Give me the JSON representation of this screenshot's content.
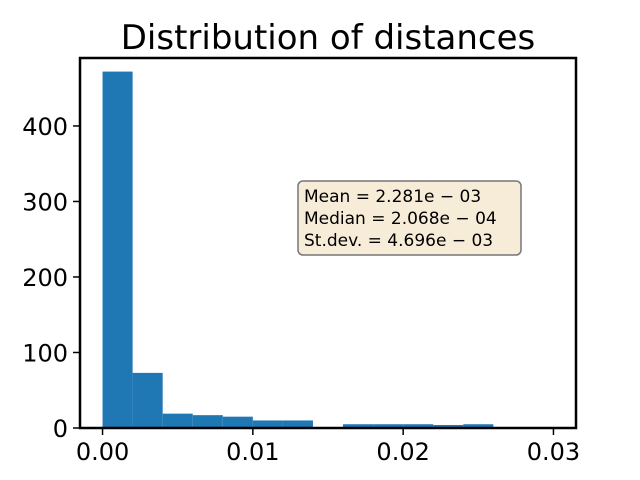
{
  "chart_data": {
    "type": "bar",
    "title": "Distribution of distances",
    "xlabel": "",
    "ylabel": "",
    "bin_edges": [
      0.0,
      0.002,
      0.004,
      0.006,
      0.008,
      0.01,
      0.012,
      0.014,
      0.016,
      0.018,
      0.02,
      0.022,
      0.024,
      0.026,
      0.028,
      0.03
    ],
    "counts": [
      472,
      73,
      19,
      17,
      15,
      10,
      10,
      1,
      5,
      5,
      5,
      4,
      5,
      1,
      1
    ],
    "xlim": [
      -0.0015,
      0.0315
    ],
    "ylim": [
      0,
      490
    ],
    "xticks": [
      0.0,
      0.01,
      0.02,
      0.03
    ],
    "xtick_labels": [
      "0.00",
      "0.01",
      "0.02",
      "0.03"
    ],
    "yticks": [
      0,
      100,
      200,
      300,
      400
    ],
    "ytick_labels": [
      "0",
      "100",
      "200",
      "300",
      "400"
    ],
    "bar_color": "#1f77b4",
    "grid": false,
    "legend": "none",
    "annotation": {
      "lines": [
        "Mean = 2.281e − 03",
        "Median = 2.068e − 04",
        "St.dev. = 4.696e − 03"
      ],
      "box_color": "#f5e6c8"
    }
  }
}
